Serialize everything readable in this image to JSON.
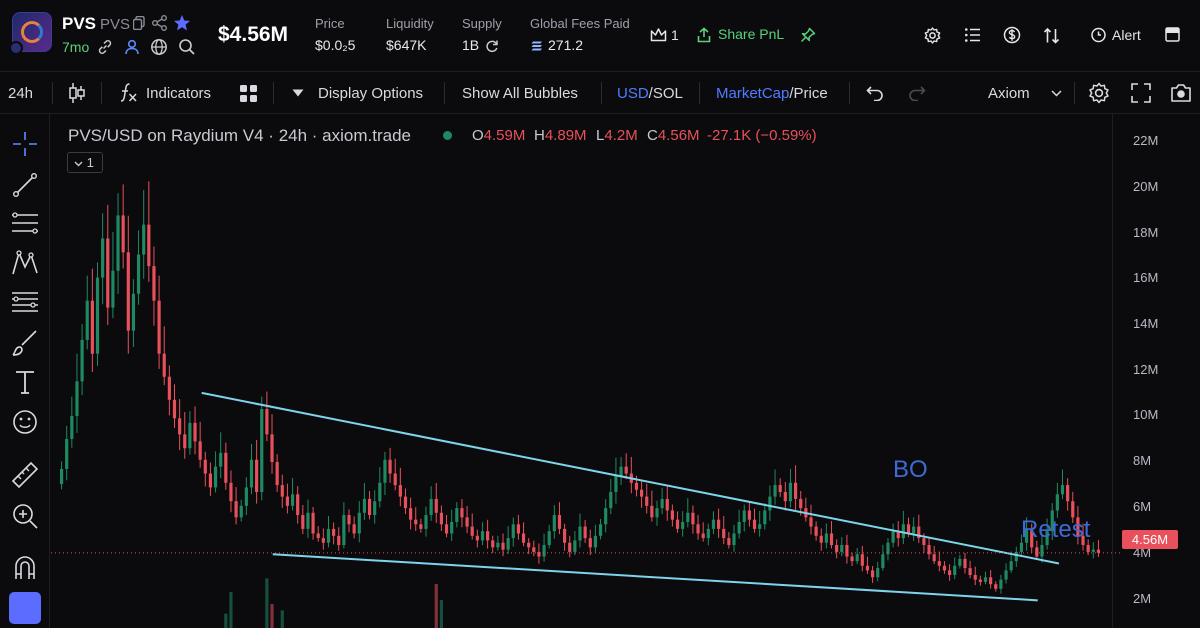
{
  "header": {
    "token_name": "PVS",
    "token_ticker": "PVS",
    "age": "7mo",
    "market_cap": "$4.56M",
    "stats": [
      {
        "label": "Price",
        "value": "$0.0₂5"
      },
      {
        "label": "Liquidity",
        "value": "$647K"
      },
      {
        "label": "Supply",
        "value": "1B"
      },
      {
        "label": "Global Fees Paid",
        "value": "271.2"
      }
    ],
    "crown_count": "1",
    "share_label": "Share PnL",
    "alert_label": "Alert"
  },
  "toolbar": {
    "timeframe": "24h",
    "indicators": "Indicators",
    "display_options": "Display Options",
    "show_bubbles": "Show All Bubbles",
    "usd": "USD",
    "sol": "/SOL",
    "marketcap": "MarketCap",
    "price": "/Price",
    "source": "Axiom"
  },
  "chart": {
    "legend": "PVS/USD on Raydium V4 · 24h · axiom.trade",
    "ohlc": {
      "o": "4.59M",
      "h": "4.89M",
      "l": "4.2M",
      "c": "4.56M",
      "change": "-27.1K (−0.59%)"
    },
    "collapse_label": "1",
    "last_price": "4.56M",
    "annotations": {
      "breakout": "BO",
      "retest": "Retest"
    },
    "colors": {
      "up": "#1f8a62",
      "down": "#e8515b",
      "trendline": "#7fd4ec",
      "annotation": "#3e6ad6"
    }
  },
  "chart_data": {
    "type": "candlestick",
    "title": "PVS/USD on Raydium V4 · 24h · axiom.trade",
    "y_unit": "market cap (USD)",
    "y_ticks": [
      "22M",
      "20M",
      "18M",
      "16M",
      "14M",
      "12M",
      "10M",
      "8M",
      "6M",
      "4M",
      "2M"
    ],
    "ylim": [
      1.3,
      23.6
    ],
    "grid": false,
    "last_value": 4.56,
    "trendlines": [
      {
        "name": "upper",
        "from": [
          0.142,
          11.5
        ],
        "to": [
          0.95,
          4.1
        ]
      },
      {
        "name": "lower",
        "from": [
          0.209,
          4.5
        ],
        "to": [
          0.93,
          2.5
        ]
      }
    ],
    "closes": [
      8.2,
      9.5,
      10.5,
      12,
      13.8,
      15.5,
      13.2,
      16.5,
      18.2,
      15.2,
      16.8,
      19.2,
      17.6,
      14.2,
      15.8,
      17.5,
      18.8,
      17,
      15.5,
      13.2,
      12.2,
      11.2,
      10.4,
      9.7,
      9.1,
      10.2,
      9.4,
      8.6,
      8,
      7.4,
      8.3,
      8.9,
      7.6,
      6.8,
      6.1,
      6.6,
      7.4,
      8.6,
      7.2,
      10.8,
      9.7,
      8.5,
      7.5,
      7,
      6.6,
      7.1,
      6.2,
      5.6,
      6.3,
      5.4,
      5.2,
      5,
      5.6,
      5.3,
      4.9,
      6.2,
      5.8,
      5.4,
      6.3,
      6.9,
      6.2,
      6.8,
      7.6,
      8.6,
      8,
      7.5,
      7,
      6.5,
      6,
      5.8,
      5.6,
      6.2,
      6.9,
      6.3,
      5.8,
      5.4,
      5.9,
      6.5,
      6.1,
      5.7,
      5.3,
      5.1,
      5.5,
      5.1,
      4.8,
      5,
      4.7,
      5.2,
      5.8,
      5.4,
      5,
      4.8,
      4.6,
      4.4,
      4.9,
      5.5,
      6.2,
      5.6,
      5,
      4.6,
      5.1,
      5.7,
      5.2,
      4.8,
      5.3,
      5.8,
      6.5,
      7.2,
      7.9,
      8.3,
      8,
      7.6,
      7.3,
      7,
      6.6,
      6.1,
      6.5,
      6.9,
      6.4,
      6,
      5.6,
      5.9,
      6.3,
      5.8,
      5.4,
      5.2,
      5.6,
      6,
      5.6,
      5.2,
      4.9,
      5.4,
      5.9,
      6.4,
      6,
      5.6,
      5.8,
      6.4,
      7,
      7.5,
      7.2,
      6.8,
      7.6,
      6.9,
      6.5,
      6.1,
      5.7,
      5.3,
      5,
      5.4,
      4.9,
      4.6,
      4.9,
      4.4,
      4.2,
      4.5,
      4,
      3.8,
      3.5,
      3.9,
      4.5,
      5,
      5.5,
      5.2,
      5.8,
      5.4,
      5.7,
      5.2,
      4.9,
      4.5,
      4.2,
      4,
      3.8,
      3.6,
      4,
      4.3,
      3.9,
      3.6,
      3.4,
      3.3,
      3.5,
      3.2,
      3,
      3.4,
      3.8,
      4.2,
      4.6,
      5,
      5.6,
      4.8,
      4.4,
      4.9,
      5.5,
      6.4,
      7.1,
      7.5,
      6.8,
      6.1,
      5.3,
      4.9,
      4.6,
      4.7,
      4.56
    ]
  }
}
